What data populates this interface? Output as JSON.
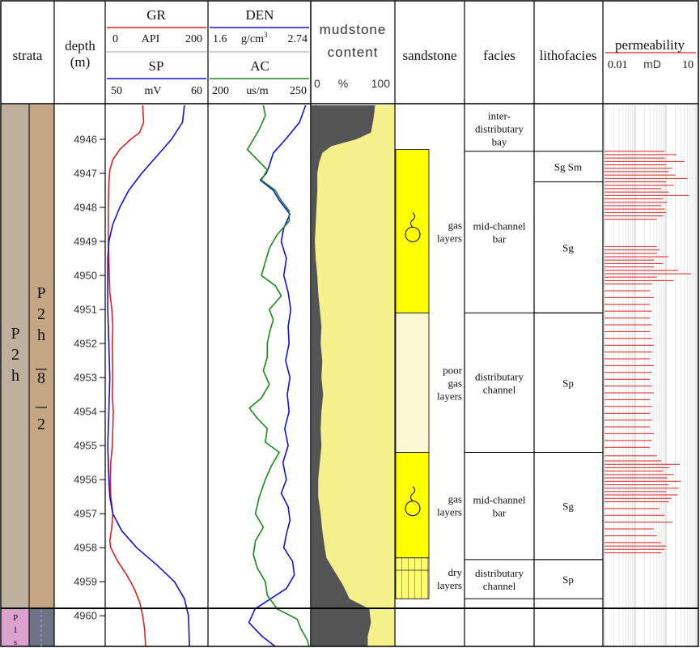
{
  "headers": {
    "strata": "strata",
    "depth_line1": "depth",
    "depth_line2": "(m)",
    "gr": {
      "name": "GR",
      "min": "0",
      "unit": "API",
      "max": "200",
      "color": "#e02020"
    },
    "sp": {
      "name": "SP",
      "min": "50",
      "unit": "mV",
      "max": "60",
      "color": "#1010e0"
    },
    "den": {
      "name": "DEN",
      "min": "1.6",
      "unit_base": "g/cm",
      "unit_sup": "3",
      "max": "2.74",
      "color": "#1010e0"
    },
    "ac": {
      "name": "AC",
      "min": "200",
      "unit": "us/m",
      "max": "250",
      "color": "#1a8a1a"
    },
    "mud_line1": "mudstone",
    "mud_line2": "content",
    "mud_min": "0",
    "mud_unit": "%",
    "mud_max": "100",
    "sandstone": "sandstone",
    "facies": "facies",
    "lithofacies": "lithofacies",
    "perm": {
      "name": "permeability",
      "min": "0.01",
      "unit": "mD",
      "max": "10",
      "color": "#e02020"
    }
  },
  "strata": {
    "formation_main": [
      "P",
      "2",
      "h"
    ],
    "member": [
      "P",
      "2",
      "h",
      "8",
      "2"
    ],
    "formation_lower": [
      "P",
      "1",
      "s"
    ],
    "colors": {
      "formation": "#bfb09e",
      "member": "#c4a682",
      "lower": "#dca2cf",
      "lower_member": "#6d7485"
    }
  },
  "depth_ticks": [
    "4946",
    "4947",
    "4948",
    "4949",
    "4950",
    "4951",
    "4952",
    "4953",
    "4954",
    "4955",
    "4956",
    "4957",
    "4958",
    "4959",
    "4960"
  ],
  "depth_range": [
    4945.0,
    4960.9
  ],
  "sandstone_units": [
    {
      "top": 4946.3,
      "bottom": 4951.1,
      "type": "gas",
      "color": "#ffff00",
      "label": [
        "gas",
        "layers"
      ]
    },
    {
      "top": 4951.1,
      "bottom": 4955.2,
      "type": "poor",
      "color": "#fcf8d4",
      "label": [
        "poor",
        "gas",
        "layers"
      ]
    },
    {
      "top": 4955.2,
      "bottom": 4958.3,
      "type": "gas",
      "color": "#ffff00",
      "label": [
        "gas",
        "layers"
      ]
    },
    {
      "top": 4958.3,
      "bottom": 4959.5,
      "type": "dry",
      "color": "#ffff66",
      "label": [
        "dry",
        "layers"
      ]
    }
  ],
  "facies": [
    {
      "top": 4945.0,
      "bottom": 4946.35,
      "label": [
        "inter-",
        "distributary",
        "bay"
      ]
    },
    {
      "top": 4946.35,
      "bottom": 4951.1,
      "label": [
        "mid-channel",
        "bar"
      ]
    },
    {
      "top": 4951.1,
      "bottom": 4955.2,
      "label": [
        "distributary",
        "channel"
      ]
    },
    {
      "top": 4955.2,
      "bottom": 4958.35,
      "label": [
        "mid-channel",
        "bar"
      ]
    },
    {
      "top": 4958.35,
      "bottom": 4959.5,
      "label": [
        "distributary",
        "channel"
      ]
    }
  ],
  "lithofacies": [
    {
      "top": 4946.35,
      "bottom": 4947.25,
      "label": "Sg  Sm"
    },
    {
      "top": 4947.25,
      "bottom": 4951.1,
      "label": "Sg"
    },
    {
      "top": 4951.1,
      "bottom": 4955.2,
      "label": "Sp"
    },
    {
      "top": 4955.2,
      "bottom": 4958.35,
      "label": "Sg"
    },
    {
      "top": 4958.35,
      "bottom": 4959.5,
      "label": "Sp"
    }
  ],
  "curves": {
    "gr": [
      [
        4945.0,
        72
      ],
      [
        4945.5,
        74
      ],
      [
        4945.8,
        66
      ],
      [
        4946.0,
        48
      ],
      [
        4946.3,
        26
      ],
      [
        4946.6,
        12
      ],
      [
        4946.9,
        6
      ],
      [
        4947.3,
        4
      ],
      [
        4948,
        3
      ],
      [
        4949,
        3
      ],
      [
        4950,
        5
      ],
      [
        4950.5,
        6
      ],
      [
        4951,
        10
      ],
      [
        4951.5,
        12
      ],
      [
        4952,
        11
      ],
      [
        4953,
        12
      ],
      [
        4953.5,
        11
      ],
      [
        4954,
        13
      ],
      [
        4954.5,
        12
      ],
      [
        4955,
        11
      ],
      [
        4955.5,
        8
      ],
      [
        4956,
        7
      ],
      [
        4956.5,
        8
      ],
      [
        4957,
        12
      ],
      [
        4957.4,
        10
      ],
      [
        4957.8,
        6
      ],
      [
        4958,
        8
      ],
      [
        4958.4,
        22
      ],
      [
        4958.8,
        40
      ],
      [
        4959.2,
        55
      ],
      [
        4959.6,
        66
      ],
      [
        4960.0,
        72
      ],
      [
        4960.4,
        76
      ],
      [
        4960.9,
        78
      ]
    ],
    "sp": [
      [
        4945.0,
        57.8
      ],
      [
        4945.5,
        57.6
      ],
      [
        4946.0,
        56.5
      ],
      [
        4946.5,
        55.0
      ],
      [
        4947.0,
        53.5
      ],
      [
        4947.5,
        52.2
      ],
      [
        4948,
        51.3
      ],
      [
        4948.5,
        50.6
      ],
      [
        4949,
        50.2
      ],
      [
        4949.5,
        50.1
      ],
      [
        4950,
        50.1
      ],
      [
        4951,
        50.1
      ],
      [
        4952,
        50.2
      ],
      [
        4953,
        50.3
      ],
      [
        4954,
        50.2
      ],
      [
        4955,
        50.1
      ],
      [
        4956,
        50.2
      ],
      [
        4956.5,
        50.3
      ],
      [
        4957,
        50.6
      ],
      [
        4957.5,
        51.5
      ],
      [
        4958,
        53.0
      ],
      [
        4958.5,
        55.0
      ],
      [
        4959,
        56.8
      ],
      [
        4959.5,
        57.8
      ],
      [
        4960,
        58.2
      ],
      [
        4960.9,
        58.3
      ]
    ],
    "den": [
      [
        4945.0,
        2.7
      ],
      [
        4945.5,
        2.63
      ],
      [
        4946.0,
        2.47
      ],
      [
        4946.4,
        2.33
      ],
      [
        4946.8,
        2.28
      ],
      [
        4947.0,
        2.25
      ],
      [
        4947.2,
        2.18
      ],
      [
        4947.5,
        2.33
      ],
      [
        4947.8,
        2.4
      ],
      [
        4948.2,
        2.52
      ],
      [
        4948.6,
        2.45
      ],
      [
        4949,
        2.42
      ],
      [
        4949.5,
        2.48
      ],
      [
        4950,
        2.45
      ],
      [
        4950.5,
        2.5
      ],
      [
        4951,
        2.53
      ],
      [
        4951.5,
        2.5
      ],
      [
        4952,
        2.51
      ],
      [
        4952.5,
        2.47
      ],
      [
        4953,
        2.52
      ],
      [
        4953.5,
        2.49
      ],
      [
        4954,
        2.51
      ],
      [
        4954.5,
        2.46
      ],
      [
        4955,
        2.5
      ],
      [
        4955.5,
        2.44
      ],
      [
        4956,
        2.48
      ],
      [
        4956.4,
        2.42
      ],
      [
        4956.8,
        2.5
      ],
      [
        4957.2,
        2.52
      ],
      [
        4957.6,
        2.48
      ],
      [
        4958,
        2.45
      ],
      [
        4958.4,
        2.55
      ],
      [
        4958.8,
        2.57
      ],
      [
        4959.2,
        2.48
      ],
      [
        4959.5,
        2.3
      ],
      [
        4959.8,
        2.12
      ],
      [
        4960.2,
        2.05
      ],
      [
        4960.6,
        2.2
      ],
      [
        4960.9,
        2.35
      ]
    ],
    "ac": [
      [
        4945.0,
        227
      ],
      [
        4945.3,
        228
      ],
      [
        4945.7,
        225
      ],
      [
        4946.0,
        222
      ],
      [
        4946.3,
        219
      ],
      [
        4946.6,
        224
      ],
      [
        4946.9,
        229
      ],
      [
        4947.2,
        226
      ],
      [
        4947.5,
        233
      ],
      [
        4947.8,
        236
      ],
      [
        4948.1,
        240
      ],
      [
        4948.4,
        240
      ],
      [
        4948.8,
        234
      ],
      [
        4949.2,
        230
      ],
      [
        4949.6,
        228
      ],
      [
        4950,
        226
      ],
      [
        4950.3,
        233
      ],
      [
        4950.6,
        236
      ],
      [
        4951,
        230
      ],
      [
        4951.3,
        232
      ],
      [
        4951.7,
        230
      ],
      [
        4952.0,
        229
      ],
      [
        4952.4,
        229
      ],
      [
        4952.8,
        227
      ],
      [
        4953.2,
        230
      ],
      [
        4953.6,
        226
      ],
      [
        4953.9,
        220
      ],
      [
        4954.2,
        224
      ],
      [
        4954.5,
        229
      ],
      [
        4954.9,
        228
      ],
      [
        4955.2,
        235
      ],
      [
        4955.6,
        231
      ],
      [
        4956.0,
        228
      ],
      [
        4956.5,
        225
      ],
      [
        4957.0,
        223
      ],
      [
        4957.4,
        227
      ],
      [
        4957.8,
        223
      ],
      [
        4958.2,
        222
      ],
      [
        4958.6,
        224
      ],
      [
        4959.0,
        228
      ],
      [
        4959.4,
        229
      ],
      [
        4959.8,
        234
      ],
      [
        4960.1,
        244
      ],
      [
        4960.4,
        246
      ],
      [
        4960.7,
        249
      ],
      [
        4960.9,
        250
      ]
    ],
    "mud": [
      [
        4945.0,
        77
      ],
      [
        4945.4,
        75
      ],
      [
        4945.8,
        72
      ],
      [
        4946.0,
        54
      ],
      [
        4946.2,
        24
      ],
      [
        4946.4,
        13
      ],
      [
        4946.7,
        9
      ],
      [
        4947.0,
        7
      ],
      [
        4947.5,
        7
      ],
      [
        4948,
        6
      ],
      [
        4948.5,
        5
      ],
      [
        4949,
        4
      ],
      [
        4949.5,
        5
      ],
      [
        4950,
        7
      ],
      [
        4950.5,
        8
      ],
      [
        4951,
        10
      ],
      [
        4951.5,
        12
      ],
      [
        4952,
        11
      ],
      [
        4952.5,
        13
      ],
      [
        4953,
        12
      ],
      [
        4953.5,
        14
      ],
      [
        4954,
        12
      ],
      [
        4954.5,
        11
      ],
      [
        4955,
        12
      ],
      [
        4955.5,
        10
      ],
      [
        4956,
        8
      ],
      [
        4956.5,
        8
      ],
      [
        4957,
        11
      ],
      [
        4957.5,
        13
      ],
      [
        4958,
        16
      ],
      [
        4958.3,
        18
      ],
      [
        4958.7,
        28
      ],
      [
        4959.1,
        38
      ],
      [
        4959.5,
        46
      ],
      [
        4959.8,
        70
      ],
      [
        4960.2,
        72
      ],
      [
        4960.6,
        68
      ],
      [
        4960.9,
        68
      ]
    ]
  },
  "permeability": [
    {
      "depth": 4946.35,
      "value": 0.9
    },
    {
      "depth": 4946.45,
      "value": 2.2
    },
    {
      "depth": 4946.55,
      "value": 0.9
    },
    {
      "depth": 4946.65,
      "value": 4.0
    },
    {
      "depth": 4946.75,
      "value": 1.0
    },
    {
      "depth": 4946.85,
      "value": 1.6
    },
    {
      "depth": 4946.95,
      "value": 1.2
    },
    {
      "depth": 4947.05,
      "value": 2.0
    },
    {
      "depth": 4947.15,
      "value": 5.0
    },
    {
      "depth": 4947.25,
      "value": 1.0
    },
    {
      "depth": 4947.35,
      "value": 1.8
    },
    {
      "depth": 4947.45,
      "value": 0.7
    },
    {
      "depth": 4947.55,
      "value": 1.2
    },
    {
      "depth": 4947.65,
      "value": 5.5
    },
    {
      "depth": 4947.75,
      "value": 0.8
    },
    {
      "depth": 4947.85,
      "value": 1.1
    },
    {
      "depth": 4947.95,
      "value": 0.7
    },
    {
      "depth": 4948.05,
      "value": 0.9
    },
    {
      "depth": 4948.15,
      "value": 1.0
    },
    {
      "depth": 4948.25,
      "value": 0.8
    },
    {
      "depth": 4948.35,
      "value": 0.5
    },
    {
      "depth": 4949.15,
      "value": 0.5
    },
    {
      "depth": 4949.25,
      "value": 0.6
    },
    {
      "depth": 4949.35,
      "value": 0.5
    },
    {
      "depth": 4949.45,
      "value": 1.2
    },
    {
      "depth": 4949.55,
      "value": 0.4
    },
    {
      "depth": 4949.65,
      "value": 0.8
    },
    {
      "depth": 4949.75,
      "value": 0.4
    },
    {
      "depth": 4949.85,
      "value": 2.5
    },
    {
      "depth": 4949.95,
      "value": 6.5
    },
    {
      "depth": 4950.05,
      "value": 0.5
    },
    {
      "depth": 4950.15,
      "value": 1.8
    },
    {
      "depth": 4950.25,
      "value": 0.35
    },
    {
      "depth": 4950.45,
      "value": 0.3
    },
    {
      "depth": 4950.65,
      "value": 0.4
    },
    {
      "depth": 4950.85,
      "value": 0.3
    },
    {
      "depth": 4951.05,
      "value": 0.35
    },
    {
      "depth": 4951.25,
      "value": 0.3
    },
    {
      "depth": 4951.45,
      "value": 0.35
    },
    {
      "depth": 4951.65,
      "value": 0.3
    },
    {
      "depth": 4951.85,
      "value": 0.35
    },
    {
      "depth": 4952.05,
      "value": 0.4
    },
    {
      "depth": 4952.25,
      "value": 0.35
    },
    {
      "depth": 4952.45,
      "value": 0.3
    },
    {
      "depth": 4952.65,
      "value": 0.4
    },
    {
      "depth": 4952.85,
      "value": 0.35
    },
    {
      "depth": 4953.05,
      "value": 0.3
    },
    {
      "depth": 4953.25,
      "value": 0.35
    },
    {
      "depth": 4953.45,
      "value": 0.4
    },
    {
      "depth": 4953.65,
      "value": 0.3
    },
    {
      "depth": 4953.85,
      "value": 0.35
    },
    {
      "depth": 4954.05,
      "value": 0.3
    },
    {
      "depth": 4954.25,
      "value": 0.35
    },
    {
      "depth": 4954.45,
      "value": 0.3
    },
    {
      "depth": 4954.65,
      "value": 0.4
    },
    {
      "depth": 4954.85,
      "value": 0.35
    },
    {
      "depth": 4955.05,
      "value": 0.3
    },
    {
      "depth": 4955.3,
      "value": 0.5
    },
    {
      "depth": 4955.45,
      "value": 0.7
    },
    {
      "depth": 4955.55,
      "value": 2.8
    },
    {
      "depth": 4955.65,
      "value": 1.3
    },
    {
      "depth": 4955.75,
      "value": 0.8
    },
    {
      "depth": 4955.85,
      "value": 1.8
    },
    {
      "depth": 4955.95,
      "value": 1.1
    },
    {
      "depth": 4956.05,
      "value": 3.0
    },
    {
      "depth": 4956.15,
      "value": 1.2
    },
    {
      "depth": 4956.25,
      "value": 2.6
    },
    {
      "depth": 4956.35,
      "value": 1.0
    },
    {
      "depth": 4956.45,
      "value": 2.4
    },
    {
      "depth": 4956.55,
      "value": 1.5
    },
    {
      "depth": 4956.65,
      "value": 1.2
    },
    {
      "depth": 4956.85,
      "value": 0.6
    },
    {
      "depth": 4957.05,
      "value": 0.9
    },
    {
      "depth": 4957.25,
      "value": 1.6
    },
    {
      "depth": 4957.45,
      "value": 0.4
    },
    {
      "depth": 4957.65,
      "value": 0.5
    },
    {
      "depth": 4957.85,
      "value": 0.7
    },
    {
      "depth": 4957.95,
      "value": 1.0
    },
    {
      "depth": 4958.05,
      "value": 0.9
    },
    {
      "depth": 4958.15,
      "value": 0.7
    }
  ]
}
